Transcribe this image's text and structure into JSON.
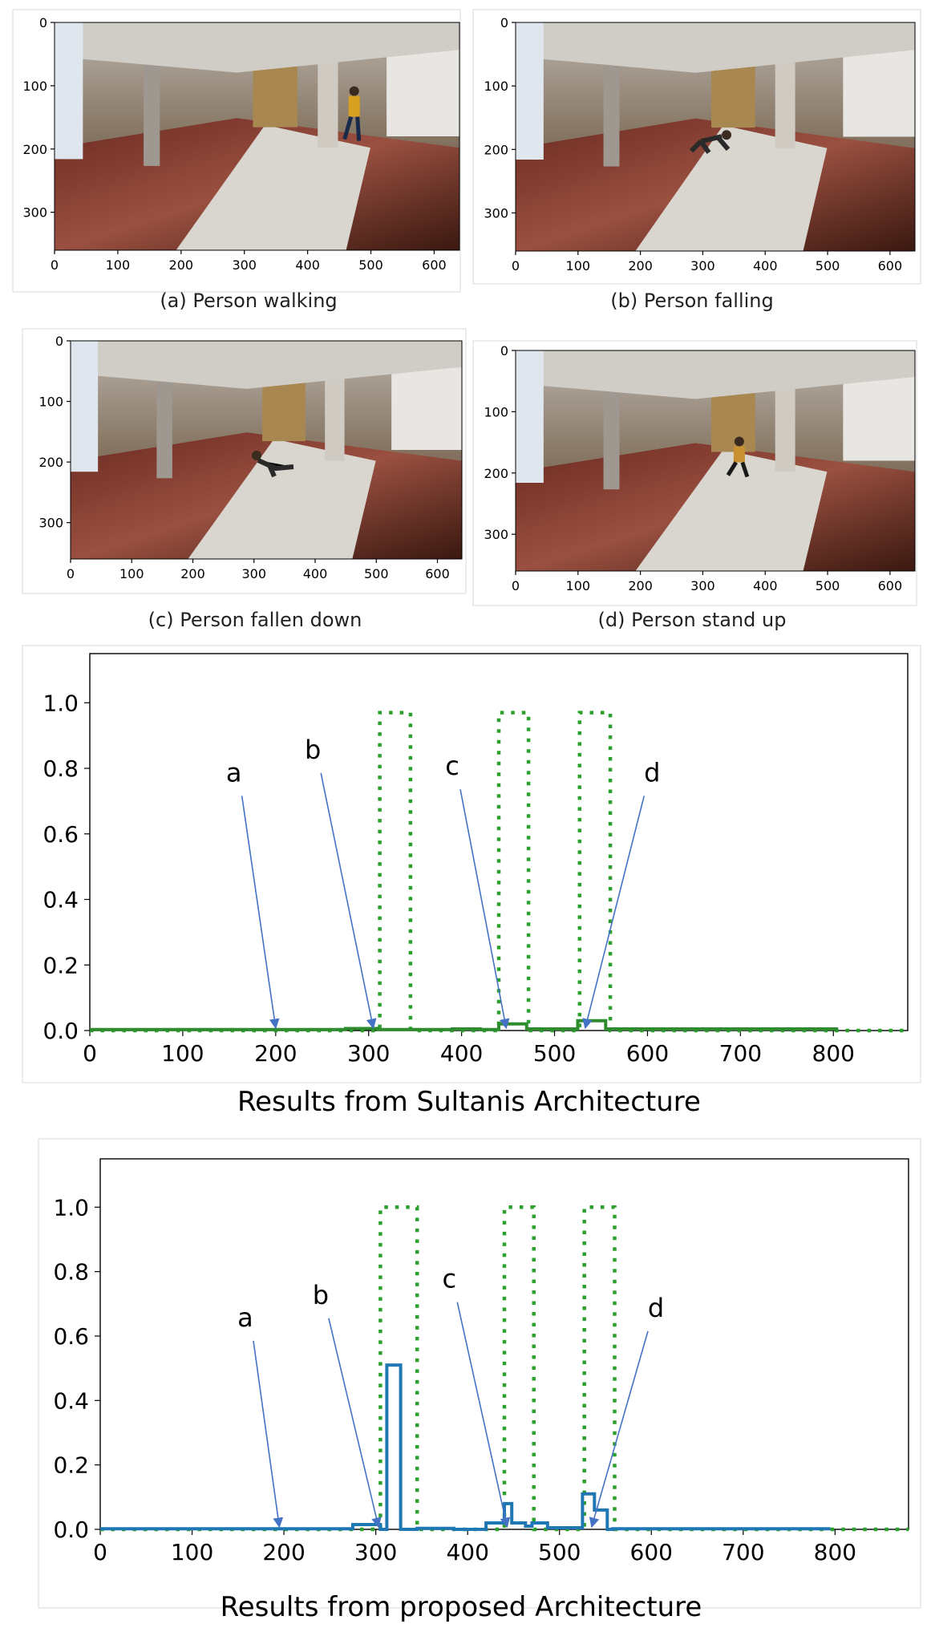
{
  "frames": [
    {
      "id": "a",
      "caption": "(a) Person walking",
      "state": "walking",
      "x_ticks": [
        "0",
        "100",
        "200",
        "300",
        "400",
        "500",
        "600"
      ],
      "y_ticks": [
        "0",
        "100",
        "200",
        "300"
      ]
    },
    {
      "id": "b",
      "caption": "(b) Person falling",
      "state": "falling",
      "x_ticks": [
        "0",
        "100",
        "200",
        "300",
        "400",
        "500",
        "600"
      ],
      "y_ticks": [
        "0",
        "100",
        "200",
        "300"
      ]
    },
    {
      "id": "c",
      "caption": "(c) Person fallen down",
      "state": "fallen",
      "x_ticks": [
        "0",
        "100",
        "200",
        "300",
        "400",
        "500",
        "600"
      ],
      "y_ticks": [
        "0",
        "100",
        "200",
        "300"
      ]
    },
    {
      "id": "d",
      "caption": "(d) Person stand up",
      "state": "standing-up",
      "x_ticks": [
        "0",
        "100",
        "200",
        "300",
        "400",
        "500",
        "600"
      ],
      "y_ticks": [
        "0",
        "100",
        "200",
        "300"
      ]
    }
  ],
  "colors": {
    "prediction": "#1f77b4",
    "ground_truth": "#2ca02c",
    "sultanis_line": "#2e8b2e",
    "arrow": "#4472c4"
  },
  "chart_data": [
    {
      "type": "line",
      "title": "",
      "xlabel": "Results from Sultanis Architecture",
      "ylabel": "",
      "xlim": [
        0,
        880
      ],
      "ylim": [
        0,
        1.15
      ],
      "x_ticks": [
        0,
        100,
        200,
        300,
        400,
        500,
        600,
        700,
        800
      ],
      "y_ticks": [
        0.0,
        0.2,
        0.4,
        0.6,
        0.8,
        1.0
      ],
      "x_tick_labels": [
        "0",
        "100",
        "200",
        "300",
        "400",
        "500",
        "600",
        "700",
        "800"
      ],
      "y_tick_labels": [
        "0.0",
        "0.2",
        "0.4",
        "0.6",
        "0.8",
        "1.0"
      ],
      "series": [
        {
          "style": "solid",
          "color": "#2e8b2e",
          "x": [
            0,
            275,
            275,
            310,
            310,
            390,
            390,
            420,
            420,
            440,
            440,
            470,
            470,
            525,
            525,
            555,
            555,
            805
          ],
          "y": [
            0.003,
            0.003,
            0.006,
            0.006,
            0.003,
            0.003,
            0.005,
            0.005,
            0.003,
            0.003,
            0.02,
            0.02,
            0.005,
            0.005,
            0.03,
            0.03,
            0.005,
            0.005
          ]
        },
        {
          "style": "dotted",
          "color": "#2ca02c",
          "x": [
            0,
            312,
            312,
            345,
            345,
            440,
            440,
            472,
            472,
            527,
            527,
            560,
            560,
            880
          ],
          "y": [
            0,
            0,
            0.97,
            0.97,
            0,
            0,
            0.97,
            0.97,
            0,
            0,
            0.97,
            0.97,
            0,
            0
          ]
        }
      ],
      "annotations": [
        {
          "text": "a",
          "label_at": [
            155,
            0.76
          ],
          "arrow_to": [
            200,
            0.0
          ]
        },
        {
          "text": "b",
          "label_at": [
            240,
            0.83
          ],
          "arrow_to": [
            305,
            0.0
          ]
        },
        {
          "text": "c",
          "label_at": [
            390,
            0.78
          ],
          "arrow_to": [
            448,
            0.0
          ]
        },
        {
          "text": "d",
          "label_at": [
            605,
            0.76
          ],
          "arrow_to": [
            533,
            0.0
          ]
        }
      ]
    },
    {
      "type": "line",
      "title": "",
      "xlabel": "Results from proposed Architecture",
      "ylabel": "",
      "xlim": [
        0,
        880
      ],
      "ylim": [
        0,
        1.15
      ],
      "x_ticks": [
        0,
        100,
        200,
        300,
        400,
        500,
        600,
        700,
        800
      ],
      "y_ticks": [
        0.0,
        0.2,
        0.4,
        0.6,
        0.8,
        1.0
      ],
      "x_tick_labels": [
        "0",
        "100",
        "200",
        "300",
        "400",
        "500",
        "600",
        "700",
        "800"
      ],
      "y_tick_labels": [
        "0.0",
        "0.2",
        "0.4",
        "0.6",
        "0.8",
        "1.0"
      ],
      "series": [
        {
          "style": "solid",
          "color": "#1f77b4",
          "x": [
            0,
            275,
            275,
            305,
            305,
            312,
            312,
            327,
            327,
            345,
            345,
            385,
            385,
            420,
            420,
            440,
            440,
            448,
            448,
            463,
            463,
            470,
            470,
            487,
            487,
            525,
            525,
            538,
            538,
            552,
            552,
            558,
            558,
            795
          ],
          "y": [
            0.002,
            0.002,
            0.015,
            0.015,
            0.0,
            0.0,
            0.51,
            0.51,
            0.0,
            0.0,
            0.003,
            0.003,
            0.0,
            0.0,
            0.02,
            0.02,
            0.08,
            0.08,
            0.02,
            0.02,
            0.01,
            0.01,
            0.02,
            0.02,
            0.005,
            0.005,
            0.11,
            0.11,
            0.06,
            0.06,
            0.0,
            0.0,
            0.002,
            0.002
          ]
        },
        {
          "style": "dotted",
          "color": "#2ca02c",
          "x": [
            0,
            305,
            305,
            345,
            345,
            440,
            440,
            472,
            472,
            527,
            527,
            560,
            560,
            880
          ],
          "y": [
            0,
            0,
            1.0,
            1.0,
            0,
            0,
            1.0,
            1.0,
            0,
            0,
            1.0,
            1.0,
            0,
            0
          ]
        }
      ],
      "annotations": [
        {
          "text": "a",
          "label_at": [
            158,
            0.63
          ],
          "arrow_to": [
            195,
            0.0
          ]
        },
        {
          "text": "b",
          "label_at": [
            240,
            0.7
          ],
          "arrow_to": [
            303,
            0.0
          ]
        },
        {
          "text": "c",
          "label_at": [
            380,
            0.75
          ],
          "arrow_to": [
            443,
            0.0
          ]
        },
        {
          "text": "d",
          "label_at": [
            605,
            0.66
          ],
          "arrow_to": [
            535,
            0.0
          ]
        }
      ]
    }
  ]
}
